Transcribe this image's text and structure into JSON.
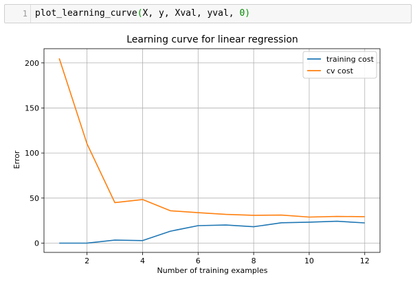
{
  "code_cell": {
    "line_number": "1",
    "func": "plot_learning_curve",
    "open_paren": "(",
    "args_text": "X, y, Xval, yval, ",
    "last_arg": "0",
    "close_paren": ")"
  },
  "chart_data": {
    "type": "line",
    "title": "Learning curve for linear regression",
    "xlabel": "Number of training examples",
    "ylabel": "Error",
    "xlim": [
      0.45,
      12.55
    ],
    "ylim": [
      -10.3,
      215.8
    ],
    "xticks": [
      2,
      4,
      6,
      8,
      10,
      12
    ],
    "yticks": [
      0,
      50,
      100,
      150,
      200
    ],
    "grid": true,
    "legend_position": "top-right",
    "x": [
      1,
      2,
      3,
      4,
      5,
      6,
      7,
      8,
      9,
      10,
      11,
      12
    ],
    "series": [
      {
        "name": "training cost",
        "color": "#1f77b4",
        "values": [
          0.0,
          0.0,
          3.3,
          2.8,
          13.2,
          19.4,
          20.1,
          18.2,
          22.6,
          23.3,
          24.3,
          22.4
        ]
      },
      {
        "name": "cv cost",
        "color": "#ff7f0e",
        "values": [
          205.1,
          110.3,
          45.0,
          48.4,
          35.9,
          33.8,
          31.9,
          30.9,
          31.1,
          28.9,
          29.6,
          29.4
        ]
      }
    ]
  }
}
